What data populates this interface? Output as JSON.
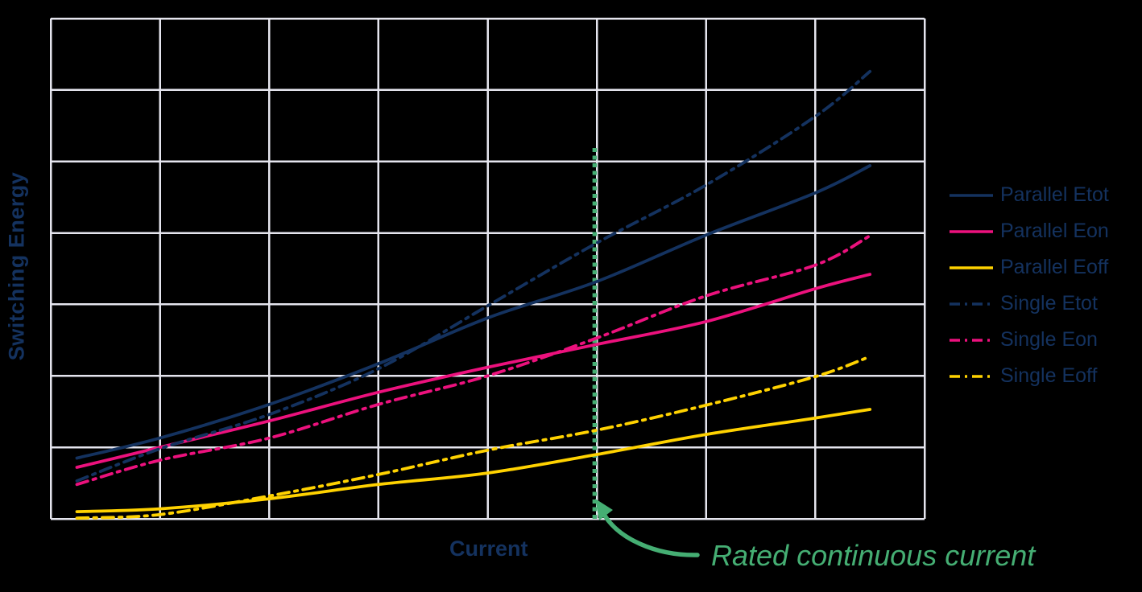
{
  "colors": {
    "background": "#000000",
    "grid": "#e5e5ee",
    "navy": "#14325f",
    "magenta": "#ec117d",
    "yellow": "#ffd200",
    "green": "#45ae73",
    "label_text": "#14325f"
  },
  "chart_data": {
    "type": "line",
    "title": "",
    "xlabel": "Current",
    "ylabel": "Switching Energy",
    "axis_tick_labels": "none (unitless axes)",
    "xlim": [
      0,
      8
    ],
    "ylim": [
      0,
      7
    ],
    "grid": true,
    "grid_divisions": {
      "x": 8,
      "y": 7
    },
    "legend_position": "right-center",
    "x": [
      0.24,
      1,
      2,
      3,
      4,
      5,
      6,
      7,
      7.5
    ],
    "series": [
      {
        "name": "Parallel Etot",
        "color": "#14325f",
        "line_style": "solid",
        "values": [
          0.85,
          1.13,
          1.6,
          2.17,
          2.81,
          3.32,
          3.97,
          4.56,
          4.94
        ]
      },
      {
        "name": "Parallel Eon",
        "color": "#ec117d",
        "line_style": "solid",
        "values": [
          0.72,
          1.0,
          1.37,
          1.77,
          2.12,
          2.44,
          2.76,
          3.22,
          3.42
        ]
      },
      {
        "name": "Parallel Eoff",
        "color": "#ffd200",
        "line_style": "solid",
        "values": [
          0.1,
          0.14,
          0.28,
          0.48,
          0.64,
          0.9,
          1.18,
          1.41,
          1.53
        ]
      },
      {
        "name": "Single Etot",
        "color": "#14325f",
        "line_style": "dashdot",
        "values": [
          0.53,
          0.98,
          1.46,
          2.1,
          2.98,
          3.86,
          4.67,
          5.63,
          6.26
        ]
      },
      {
        "name": "Single Eon",
        "color": "#ec117d",
        "line_style": "dashdot",
        "values": [
          0.48,
          0.82,
          1.13,
          1.6,
          2.0,
          2.53,
          3.12,
          3.55,
          3.96
        ]
      },
      {
        "name": "Single Eoff",
        "color": "#ffd200",
        "line_style": "dashdot",
        "values": [
          0.01,
          0.06,
          0.32,
          0.62,
          0.96,
          1.24,
          1.59,
          1.99,
          2.27
        ]
      }
    ],
    "annotation": {
      "label": "Rated continuous current",
      "line_x": 4.98,
      "line_y_span": [
        0,
        5.2
      ],
      "style": "vertical dotted line with curved arrow from label to x-axis",
      "color": "#45ae73"
    }
  }
}
